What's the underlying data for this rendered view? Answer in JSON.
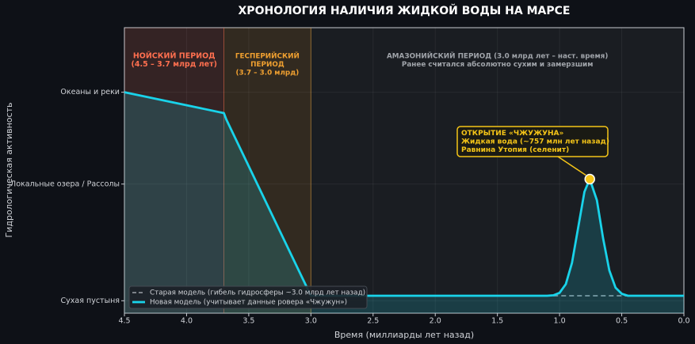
{
  "chart_data": {
    "type": "line",
    "title": "ХРОНОЛОГИЯ НАЛИЧИЯ ЖИДКОЙ ВОДЫ НА МАРСЕ",
    "xlabel": "Время (миллиарды лет назад)",
    "ylabel": "Гидрологическая активность",
    "xlim": [
      4.5,
      0
    ],
    "xticks": [
      4.5,
      {
        "value": 4,
        "label": "4.0"
      },
      3.5,
      {
        "value": 3,
        "label": "3.0"
      },
      2.5,
      {
        "value": 2,
        "label": "2.0"
      },
      1.5,
      {
        "value": 1,
        "label": "1.0"
      },
      0.5,
      {
        "value": 0,
        "label": "0.0"
      }
    ],
    "ylim": [
      -0.05,
      1.1
    ],
    "yticks": [
      {
        "value": 0,
        "label": "Сухая пустыня"
      },
      {
        "value": 0.47,
        "label": "Локальные озера / Рассолы"
      },
      {
        "value": 0.84,
        "label": "Океаны и реки"
      }
    ],
    "grid": true,
    "legend": "lower left",
    "periods": [
      {
        "label": [
          "НОЙСКИЙ ПЕРИОД",
          "(4.5 – 3.7 млрд лет)"
        ],
        "start": 4.5,
        "end": 3.7,
        "color": "#ff6f4f"
      },
      {
        "label": [
          "ГЕСПЕРИЙСКИЙ",
          "ПЕРИОД",
          "(3.7 – 3.0 млрд)"
        ],
        "start": 3.7,
        "end": 3.0,
        "color": "#f0a030"
      },
      {
        "label": [
          "АМАЗОНИЙСКИЙ ПЕРИОД (3.0 млрд лет – наст. время)",
          "Ранее считался абсолютно сухим и замерзшим"
        ],
        "start": 3.0,
        "end": 0,
        "color": "#a0a4aa"
      }
    ],
    "series": [
      {
        "name": "Старая модель (гибель гидросферы ~3.0 млрд лет назад)",
        "color": "#8a8f96",
        "dashed": true,
        "x": [
          4.5,
          3.7,
          3.68,
          3.0,
          0
        ],
        "values": [
          0.84,
          0.756,
          0.73,
          0.02,
          0.02
        ]
      },
      {
        "name": "Новая модель (учитывает данные ровера «Чжужун»)",
        "color": "#19d3ea",
        "dashed": false,
        "x": [
          4.5,
          3.7,
          3.68,
          3.0,
          1.1,
          1.05,
          1.0,
          0.95,
          0.9,
          0.85,
          0.8,
          0.757,
          0.7,
          0.65,
          0.6,
          0.55,
          0.5,
          0.45,
          0
        ],
        "values": [
          0.84,
          0.756,
          0.73,
          0.02,
          0.02,
          0.022,
          0.032,
          0.067,
          0.153,
          0.295,
          0.439,
          0.49,
          0.405,
          0.252,
          0.122,
          0.053,
          0.028,
          0.02,
          0.02
        ]
      }
    ],
    "annotation": {
      "lines": [
        "ОТКРЫТИЕ «ЧЖУЖУНА»",
        "Жидкая вода (~757 млн лет назад)",
        "Равнина Утопия (селенит)"
      ],
      "x": 0.757,
      "y": 0.49,
      "color": "#f5c518"
    }
  }
}
